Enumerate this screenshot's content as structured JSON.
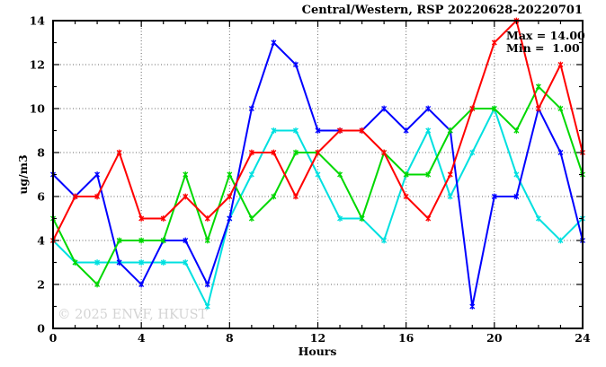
{
  "window": {
    "background": "#ffffff",
    "border_color": "#000000",
    "grid_color": "#666666"
  },
  "watermark": {
    "text": "© 2025 ENVF, HKUST",
    "color": "#d4d4d4"
  },
  "annotations": {
    "max_label": "Max = 14.00",
    "min_label": "Min =  1.00"
  },
  "chart_data": {
    "type": "line",
    "title": "Central/Western, RSP 20220628-20220701",
    "xlabel": "Hours",
    "ylabel": "ug/m3",
    "xlim": [
      0,
      24
    ],
    "ylim": [
      0,
      14
    ],
    "xticks": [
      0,
      4,
      8,
      12,
      16,
      20,
      24
    ],
    "yticks": [
      0,
      2,
      4,
      6,
      8,
      10,
      12,
      14
    ],
    "x_minor_step": 1,
    "y_minor_step": 1,
    "grid": true,
    "legend_position": "none",
    "marker": "asterisk",
    "x": [
      0,
      1,
      2,
      3,
      4,
      5,
      6,
      7,
      8,
      9,
      10,
      11,
      12,
      13,
      14,
      15,
      16,
      17,
      18,
      19,
      20,
      21,
      22,
      23,
      24
    ],
    "series": [
      {
        "name": "series-cyan",
        "color": "#00e0e0",
        "values": [
          4,
          3,
          3,
          3,
          3,
          3,
          3,
          1,
          5,
          7,
          9,
          9,
          7,
          5,
          5,
          4,
          7,
          9,
          6,
          8,
          10,
          7,
          5,
          4,
          5
        ]
      },
      {
        "name": "series-blue",
        "color": "#0000ff",
        "values": [
          7,
          6,
          7,
          3,
          2,
          4,
          4,
          2,
          5,
          10,
          13,
          12,
          9,
          9,
          9,
          10,
          9,
          10,
          9,
          1,
          6,
          6,
          10,
          8,
          4
        ]
      },
      {
        "name": "series-green",
        "color": "#00d800",
        "values": [
          5,
          3,
          2,
          4,
          4,
          4,
          7,
          4,
          7,
          5,
          6,
          8,
          8,
          7,
          5,
          8,
          7,
          7,
          9,
          10,
          10,
          9,
          11,
          10,
          7
        ]
      },
      {
        "name": "series-red",
        "color": "#ff0000",
        "values": [
          4,
          6,
          6,
          8,
          5,
          5,
          6,
          5,
          6,
          8,
          8,
          6,
          8,
          9,
          9,
          8,
          6,
          5,
          7,
          10,
          13,
          14,
          10,
          12,
          8
        ]
      }
    ],
    "stats": {
      "max": 14.0,
      "min": 1.0
    }
  }
}
